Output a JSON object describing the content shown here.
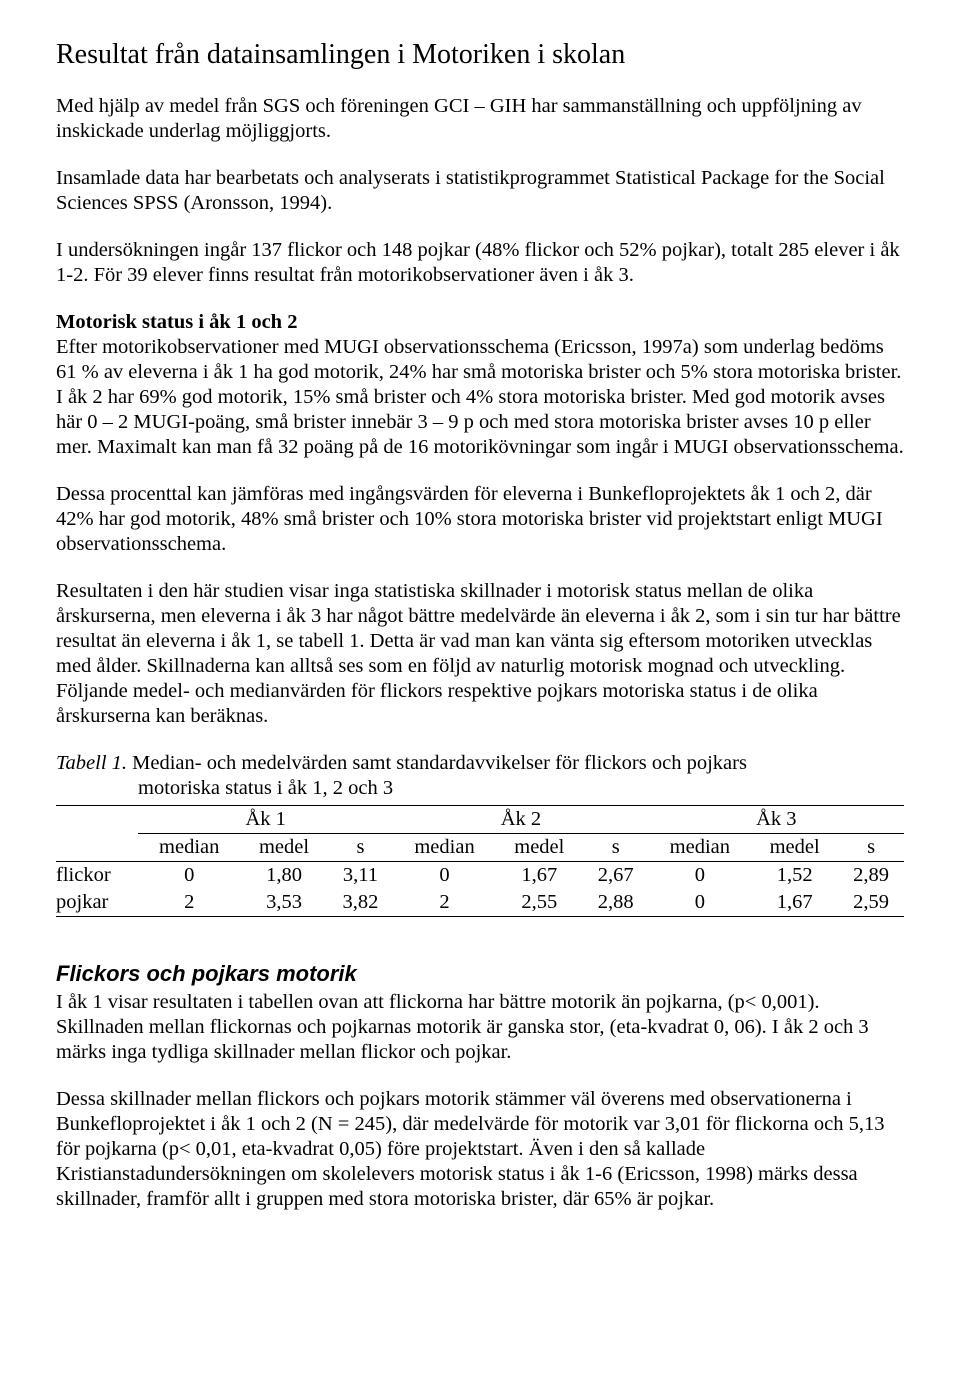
{
  "title": "Resultat från datainsamlingen i Motoriken i skolan",
  "p1": "Med hjälp av medel från SGS och föreningen GCI – GIH har sammanställning och uppföljning av inskickade underlag möjliggjorts.",
  "p2": "Insamlade data har bearbetats och analyserats i statistikprogrammet Statistical Package for the Social Sciences SPSS (Aronsson, 1994).",
  "p3": "I undersökningen ingår 137 flickor och 148 pojkar (48% flickor och 52% pojkar), totalt 285 elever i åk 1-2. För 39 elever finns resultat från motorikobservationer även i åk 3.",
  "p4_bold": "Motorisk status i åk 1 och 2",
  "p4_body": "Efter motorikobservationer med MUGI observationsschema (Ericsson, 1997a) som underlag bedöms 61 % av eleverna i åk 1 ha god motorik, 24% har små motoriska brister och 5% stora motoriska brister. I åk 2 har 69% god motorik, 15% små brister och 4% stora motoriska brister. Med god motorik avses här 0 – 2 MUGI-poäng, små brister innebär 3 – 9 p och med stora motoriska brister avses 10 p eller mer. Maximalt kan man få 32 poäng på de 16 motorikövningar som ingår i MUGI observationsschema.",
  "p5": "Dessa procenttal kan jämföras med ingångsvärden för eleverna i Bunkefloprojektets åk 1 och 2, där 42% har god motorik, 48% små brister och 10% stora motoriska brister vid projektstart enligt MUGI observationsschema.",
  "p6": "Resultaten i den här studien visar inga statistiska skillnader i motorisk status mellan de olika årskurserna, men eleverna i åk 3 har något bättre medelvärde än eleverna i åk 2, som i sin tur har bättre resultat än eleverna i åk 1, se tabell 1. Detta är vad man kan vänta sig eftersom motoriken utvecklas med ålder. Skillnaderna kan alltså ses som en följd av naturlig motorisk mognad och utveckling. Följande medel- och medianvärden för flickors respektive pojkars motoriska status i de olika årskurserna kan beräknas.",
  "tcap_lead": "Tabell 1.",
  "tcap_rest": " Median- och medelvärden samt standardavvikelser för flickors och pojkars",
  "tcap_line2": "motoriska status i åk 1, 2 och 3",
  "table": {
    "groups": [
      "Åk 1",
      "Åk 2",
      "Åk 3"
    ],
    "cols": [
      "median",
      "medel",
      "s",
      "median",
      "medel",
      "s",
      "median",
      "medel",
      "s"
    ],
    "rows": [
      {
        "label": "flickor",
        "vals": [
          "0",
          "1,80",
          "3,11",
          "0",
          "1,67",
          "2,67",
          "0",
          "1,52",
          "2,89"
        ]
      },
      {
        "label": "pojkar",
        "vals": [
          "2",
          "3,53",
          "3,82",
          "2",
          "2,55",
          "2,88",
          "0",
          "1,67",
          "2,59"
        ]
      }
    ]
  },
  "h2": "Flickors och pojkars motorik",
  "p7": "I åk 1 visar resultaten i tabellen ovan att flickorna har bättre motorik än pojkarna, (p< 0,001). Skillnaden mellan flickornas och pojkarnas motorik är ganska stor, (eta-kvadrat 0, 06). I åk 2 och 3 märks inga tydliga skillnader mellan flickor och pojkar.",
  "p8": "Dessa skillnader mellan flickors och pojkars motorik stämmer väl överens med observationerna i Bunkefloprojektet i åk 1 och 2 (N = 245), där medelvärde för motorik var 3,01 för flickorna och 5,13 för pojkarna (p< 0,01, eta-kvadrat 0,05) före projektstart. Även i den så kallade Kristianstadundersökningen om skolelevers motorisk status i åk 1-6 (Ericsson, 1998) märks dessa skillnader, framför allt i gruppen med stora motoriska brister, där 65% är pojkar."
}
